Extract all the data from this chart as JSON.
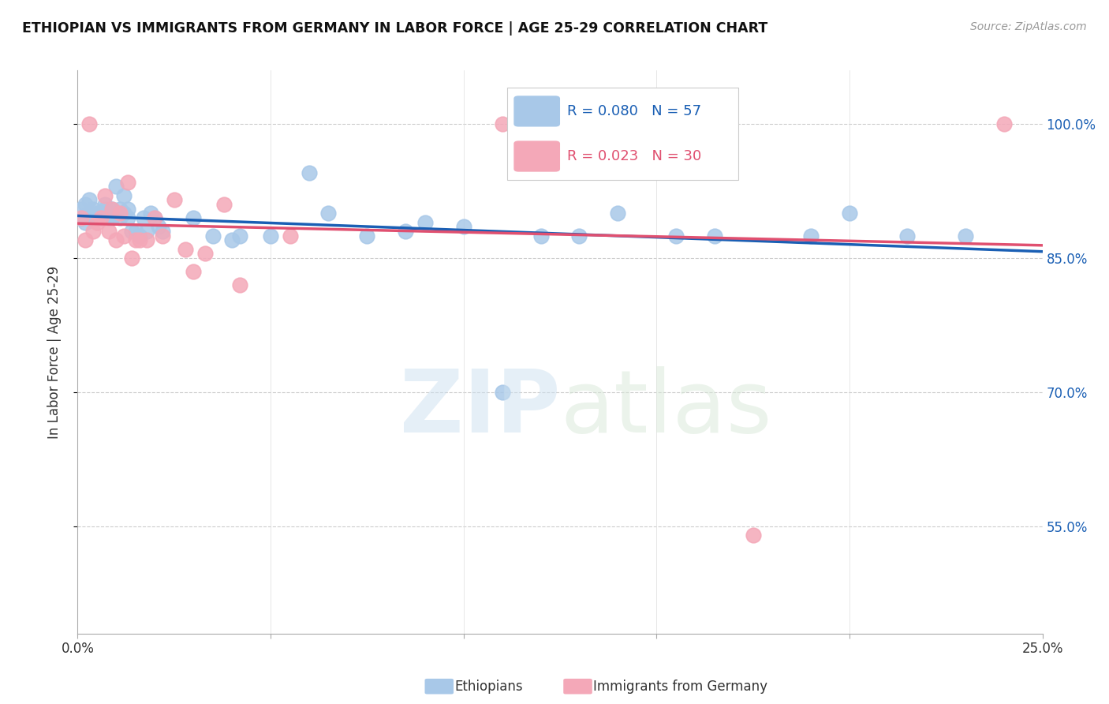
{
  "title": "ETHIOPIAN VS IMMIGRANTS FROM GERMANY IN LABOR FORCE | AGE 25-29 CORRELATION CHART",
  "source": "Source: ZipAtlas.com",
  "ylabel": "In Labor Force | Age 25-29",
  "x_min": 0.0,
  "x_max": 0.25,
  "y_min": 0.43,
  "y_max": 1.06,
  "R_blue": 0.08,
  "N_blue": 57,
  "R_pink": 0.023,
  "N_pink": 30,
  "blue_color": "#a8c8e8",
  "pink_color": "#f4a8b8",
  "trendline_blue": "#1a5fb4",
  "trendline_pink": "#e05070",
  "blue_x": [
    0.001,
    0.001,
    0.002,
    0.002,
    0.003,
    0.003,
    0.004,
    0.004,
    0.005,
    0.005,
    0.006,
    0.006,
    0.006,
    0.007,
    0.007,
    0.008,
    0.008,
    0.009,
    0.009,
    0.01,
    0.01,
    0.011,
    0.011,
    0.012,
    0.012,
    0.013,
    0.013,
    0.014,
    0.015,
    0.016,
    0.017,
    0.018,
    0.019,
    0.02,
    0.021,
    0.022,
    0.03,
    0.035,
    0.04,
    0.042,
    0.05,
    0.06,
    0.065,
    0.075,
    0.085,
    0.09,
    0.1,
    0.11,
    0.12,
    0.13,
    0.14,
    0.155,
    0.165,
    0.19,
    0.2,
    0.215,
    0.23
  ],
  "blue_y": [
    0.895,
    0.905,
    0.89,
    0.91,
    0.9,
    0.915,
    0.895,
    0.905,
    0.895,
    0.9,
    0.895,
    0.9,
    0.895,
    0.905,
    0.91,
    0.895,
    0.9,
    0.895,
    0.905,
    0.9,
    0.93,
    0.895,
    0.905,
    0.92,
    0.9,
    0.905,
    0.895,
    0.88,
    0.88,
    0.875,
    0.895,
    0.88,
    0.9,
    0.895,
    0.885,
    0.88,
    0.895,
    0.875,
    0.87,
    0.875,
    0.875,
    0.945,
    0.9,
    0.875,
    0.88,
    0.89,
    0.885,
    0.7,
    0.875,
    0.875,
    0.9,
    0.875,
    0.875,
    0.875,
    0.9,
    0.875,
    0.875
  ],
  "pink_x": [
    0.001,
    0.002,
    0.003,
    0.004,
    0.005,
    0.006,
    0.007,
    0.008,
    0.009,
    0.01,
    0.011,
    0.012,
    0.013,
    0.014,
    0.015,
    0.016,
    0.018,
    0.02,
    0.022,
    0.025,
    0.028,
    0.03,
    0.033,
    0.038,
    0.042,
    0.055,
    0.11,
    0.14,
    0.175,
    0.24
  ],
  "pink_y": [
    0.895,
    0.87,
    1.0,
    0.88,
    0.89,
    0.895,
    0.92,
    0.88,
    0.905,
    0.87,
    0.9,
    0.875,
    0.935,
    0.85,
    0.87,
    0.87,
    0.87,
    0.895,
    0.875,
    0.915,
    0.86,
    0.835,
    0.855,
    0.91,
    0.82,
    0.875,
    1.0,
    1.0,
    0.54,
    1.0
  ]
}
